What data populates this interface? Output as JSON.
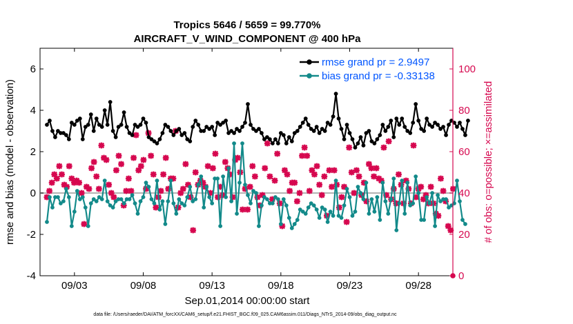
{
  "chart_data": {
    "type": "line",
    "title": "Tropics 5646 / 5659 = 99.770%",
    "subtitle": "AIRCRAFT_V_WIND_COMPONENT @ 400 hPa",
    "xlabel": "Sep.01,2014 00:00:00 start",
    "ylabel": "rmse and bias (model - observation)",
    "y2label": "# of obs: o=possible; ×=assimilated",
    "footer": "data file: /Users/raeder/DAI/ATM_forcXX/CAM6_setup/f.e21.FHIST_BGC.f09_025.CAM6assim.011/Diags_NTrS_2014-09/obs_diag_output.nc",
    "xlim": [
      0.5,
      30.5
    ],
    "ylim": [
      -4,
      7
    ],
    "y2lim": [
      0,
      110
    ],
    "x_ticks": [
      3,
      8,
      13,
      18,
      23,
      28
    ],
    "x_tick_labels": [
      "09/03",
      "09/08",
      "09/13",
      "09/18",
      "09/23",
      "09/28"
    ],
    "y_ticks": [
      -4,
      -2,
      0,
      2,
      4,
      6
    ],
    "y_tick_labels": [
      "-4",
      "-2",
      "0",
      "2",
      "4",
      "6"
    ],
    "y2_ticks": [
      0,
      20,
      40,
      60,
      80,
      100
    ],
    "y2_tick_labels": [
      "0",
      "20",
      "40",
      "60",
      "80",
      "100"
    ],
    "grid": false,
    "legend_position": "top-right",
    "colors": {
      "rmse": "#000000",
      "bias": "#138a8a",
      "obs": "#d6084f",
      "zero_line": "#b3b3b3"
    },
    "series": [
      {
        "name": "rmse grand pr = 2.9497",
        "key": "rmse",
        "values": [
          3.3,
          3.5,
          3.0,
          2.7,
          3.0,
          2.9,
          2.9,
          2.8,
          2.6,
          3.4,
          3.3,
          3.5,
          3.6,
          2.6,
          3.2,
          3.3,
          3.8,
          3.0,
          3.6,
          3.3,
          3.2,
          4.0,
          3.3,
          4.4,
          3.0,
          2.7,
          3.2,
          3.3,
          3.9,
          3.2,
          2.9,
          2.8,
          3.3,
          3.2,
          3.3,
          3.6,
          3.4,
          2.7,
          2.6,
          2.5,
          2.4,
          2.6,
          2.9,
          3.3,
          3.2,
          3.0,
          2.8,
          3.0,
          3.1,
          2.8,
          2.9,
          2.6,
          2.5,
          3.2,
          3.5,
          3.3,
          3.0,
          3.0,
          3.2,
          3.1,
          3.2,
          2.8,
          3.4,
          3.3,
          3.4,
          3.5,
          2.9,
          3.0,
          2.9,
          3.1,
          3.0,
          3.2,
          3.4,
          4.3,
          3.3,
          3.1,
          3.0,
          3.1,
          2.9,
          2.6,
          2.7,
          2.6,
          2.4,
          2.6,
          2.4,
          2.9,
          2.8,
          2.4,
          2.7,
          2.5,
          2.9,
          3.0,
          3.2,
          3.4,
          3.6,
          3.3,
          3.1,
          3.0,
          3.2,
          2.9,
          3.1,
          3.0,
          3.4,
          3.3,
          3.7,
          4.8,
          3.6,
          3.1,
          2.6,
          3.3,
          2.9,
          2.6,
          2.2,
          2.4,
          2.7,
          2.3,
          2.9,
          3.0,
          2.5,
          2.4,
          2.6,
          2.8,
          3.3,
          3.0,
          3.2,
          3.5,
          2.7,
          3.6,
          3.3,
          3.6,
          3.2,
          3.0,
          2.9,
          3.4,
          4.3,
          3.5,
          3.1,
          3.0,
          3.6,
          3.3,
          3.2,
          3.4,
          3.3,
          3.1,
          3.2,
          2.8,
          3.3,
          3.5,
          3.4,
          3.2,
          3.4,
          3.1,
          2.8,
          3.5
        ],
        "step": 0.2
      },
      {
        "name": "bias grand pr = -0.33138",
        "key": "bias",
        "values": [
          -1.4,
          -0.2,
          -0.7,
          -0.2,
          -0.2,
          -0.5,
          -0.4,
          0.2,
          -0.2,
          -1.6,
          -0.9,
          0.1,
          -0.3,
          -0.2,
          -0.7,
          -1.6,
          -0.5,
          -0.3,
          -0.4,
          -0.2,
          -0.3,
          0.6,
          -0.4,
          -0.6,
          -0.7,
          -0.4,
          -0.3,
          -0.3,
          -0.5,
          -0.3,
          -0.3,
          -0.1,
          -0.5,
          -1.0,
          -0.4,
          -0.2,
          0.5,
          0.3,
          -0.3,
          -0.5,
          0.6,
          -0.8,
          -0.4,
          -1.5,
          -0.4,
          0.6,
          -0.5,
          -1.0,
          -0.3,
          -0.5,
          -0.6,
          -0.2,
          0.3,
          -0.4,
          -0.3,
          0.4,
          0.8,
          -0.7,
          0.3,
          -0.2,
          -0.5,
          0.7,
          0.7,
          -1.6,
          0.8,
          -0.2,
          1.2,
          -0.4,
          2.4,
          -1.0,
          0.5,
          2.4,
          0.4,
          -0.1,
          -0.5,
          0.1,
          0.0,
          -1.6,
          -0.6,
          -0.2,
          -0.3,
          -0.5,
          -0.5,
          -0.2,
          -0.3,
          -1.5,
          -0.3,
          -0.6,
          -1.2,
          -1.7,
          -1.5,
          -1.3,
          -0.8,
          -0.9,
          -1.0,
          -0.7,
          -0.5,
          -0.6,
          -0.8,
          -1.2,
          -0.7,
          -0.8,
          -1.4,
          -0.9,
          -1.1,
          0.6,
          -1.1,
          -1.2,
          -0.6,
          0.2,
          -0.2,
          -1.1,
          -0.9,
          0.3,
          0.0,
          -0.3,
          0.5,
          -1.0,
          -0.3,
          -0.9,
          -0.2,
          -1.3,
          0.5,
          -0.4,
          -1.0,
          -0.3,
          0.7,
          -1.8,
          -0.5,
          0.6,
          -1.0,
          0.5,
          -0.6,
          -0.5,
          0.8,
          0.0,
          -1.3,
          -1.3,
          -0.2,
          -0.5,
          0.0,
          -1.6,
          -0.1,
          -0.4,
          -0.3,
          -0.3,
          -0.7,
          -0.6,
          -0.5,
          0.6,
          -0.4,
          -1.3,
          -1.5
        ],
        "step": 0.2
      },
      {
        "name": "# of obs (×=assimilated)",
        "key": "obs",
        "axis": "right",
        "values": [
          38,
          41,
          45,
          49,
          47,
          53,
          49,
          44,
          43,
          53,
          47,
          45,
          46,
          45,
          40,
          25,
          43,
          42,
          52,
          55,
          48,
          42,
          63,
          57,
          56,
          44,
          40,
          38,
          51,
          58,
          54,
          34,
          41,
          47,
          41,
          57,
          68,
          51,
          53,
          56,
          42,
          69,
          58,
          49,
          33,
          38,
          41,
          49,
          57,
          42,
          47,
          47,
          70,
          33,
          40,
          42,
          54,
          44,
          38,
          22,
          50,
          44,
          46,
          45,
          43,
          53,
          40,
          52,
          59,
          38,
          43,
          39,
          55,
          52,
          49,
          38,
          56,
          57,
          50,
          32,
          42,
          32,
          43,
          53,
          48,
          38,
          34,
          39,
          52,
          64,
          48,
          37,
          46,
          59,
          35,
          24,
          51,
          49,
          41,
          45,
          45,
          36,
          40,
          58,
          62,
          58,
          41,
          51,
          49,
          53,
          44,
          39,
          48,
          29,
          51,
          43,
          51,
          44,
          33,
          38,
          43,
          26,
          62,
          50,
          40,
          51,
          48,
          39,
          45,
          36,
          54,
          52,
          48,
          52,
          47,
          46,
          62,
          39,
          65,
          37,
          42,
          35,
          49,
          44,
          35,
          46,
          42,
          35,
          63,
          38,
          42,
          43,
          37,
          39,
          35,
          43,
          35,
          30,
          29,
          47,
          41,
          36,
          24,
          22,
          42
        ],
        "step": 0.18
      },
      {
        "name": "# of obs (o=possible)",
        "key": "obs_possible",
        "axis": "right",
        "values": [
          0
        ],
        "x_start": 30.5
      }
    ]
  }
}
